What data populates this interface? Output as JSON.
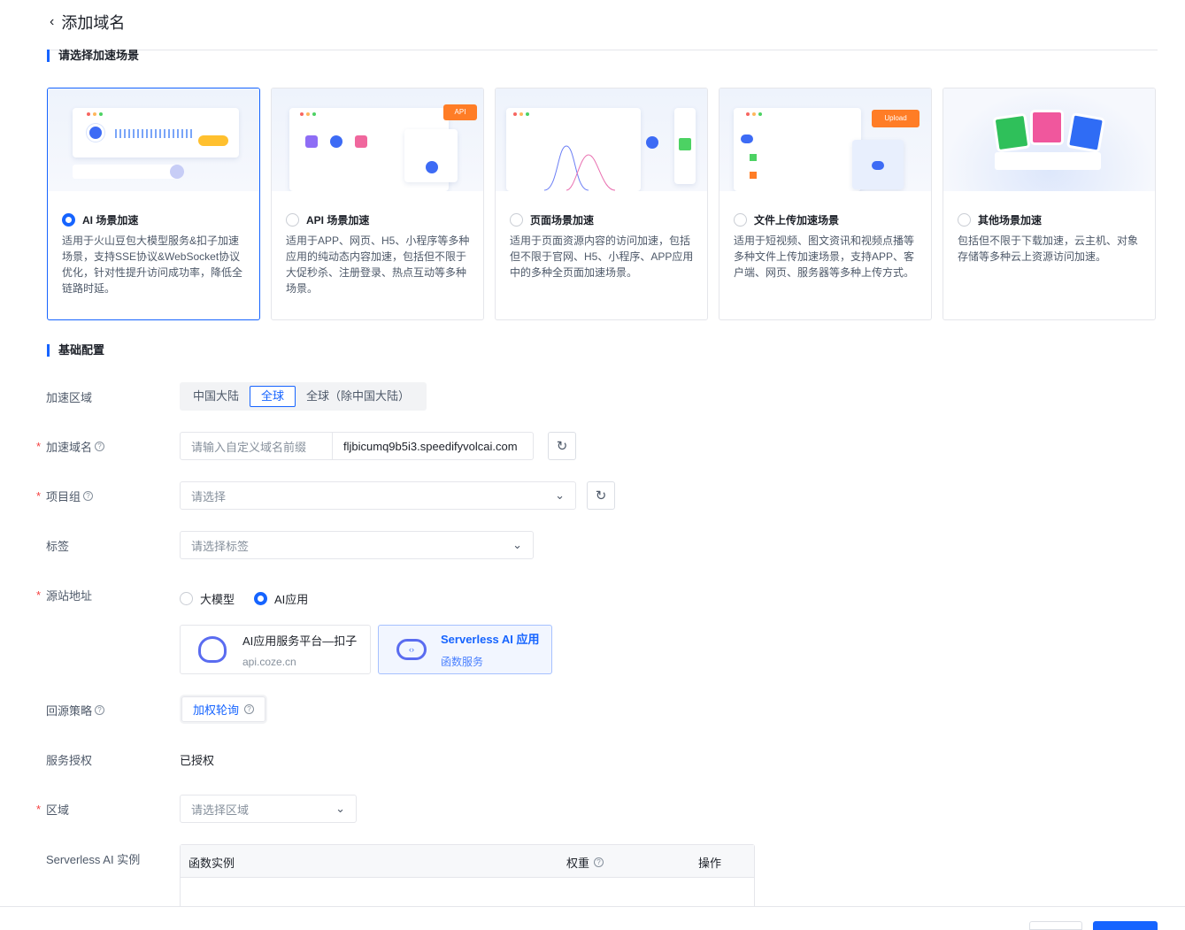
{
  "header": {
    "title": "添加域名",
    "back_icon": "chevron-left-icon"
  },
  "scene_section": {
    "title": "请选择加速场景"
  },
  "scenes": [
    {
      "title": "AI 场景加速",
      "desc": "适用于火山豆包大模型服务&扣子加速场景，支持SSE协议&WebSocket协议优化，针对性提升访问成功率，降低全链路时延。",
      "selected": true
    },
    {
      "title": "API 场景加速",
      "desc": "适用于APP、网页、H5、小程序等多种应用的纯动态内容加速，包括但不限于大促秒杀、注册登录、热点互动等多种场景。",
      "selected": false,
      "badge": "API"
    },
    {
      "title": "页面场景加速",
      "desc": "适用于页面资源内容的访问加速，包括但不限于官网、H5、小程序、APP应用中的多种全页面加速场景。",
      "selected": false
    },
    {
      "title": "文件上传加速场景",
      "desc": "适用于短视频、图文资讯和视频点播等多种文件上传加速场景，支持APP、客户端、网页、服务器等多种上传方式。",
      "selected": false,
      "badge": "Upload"
    },
    {
      "title": "其他场景加速",
      "desc": "包括但不限于下载加速，云主机、对象存储等多种云上资源访问加速。",
      "selected": false
    }
  ],
  "basic_section": {
    "title": "基础配置"
  },
  "form": {
    "region": {
      "label": "加速区域",
      "options": [
        "中国大陆",
        "全球",
        "全球（除中国大陆）"
      ],
      "selected": "全球"
    },
    "domain": {
      "label": "加速域名",
      "placeholder": "请输入自定义域名前缀",
      "suffix": "fljbicumq9b5i3.speedifyvolcai.com"
    },
    "project": {
      "label": "项目组",
      "placeholder": "请选择"
    },
    "tags": {
      "label": "标签",
      "placeholder": "请选择标签"
    },
    "origin": {
      "label": "源站地址",
      "options": [
        "大模型",
        "AI应用"
      ],
      "selected": "AI应用",
      "sources": [
        {
          "title": "AI应用服务平台—扣子",
          "sub": "api.coze.cn",
          "selected": false
        },
        {
          "title": "Serverless AI 应用",
          "sub": "函数服务",
          "selected": true
        }
      ]
    },
    "policy": {
      "label": "回源策略",
      "value": "加权轮询"
    },
    "auth": {
      "label": "服务授权",
      "value": "已授权"
    },
    "zone": {
      "label": "区域",
      "placeholder": "请选择区域"
    },
    "instances": {
      "label": "Serverless AI 实例",
      "columns": [
        "函数实例",
        "权重",
        "操作"
      ]
    }
  },
  "colors": {
    "primary": "#1664ff",
    "required": "#f53f3f"
  }
}
